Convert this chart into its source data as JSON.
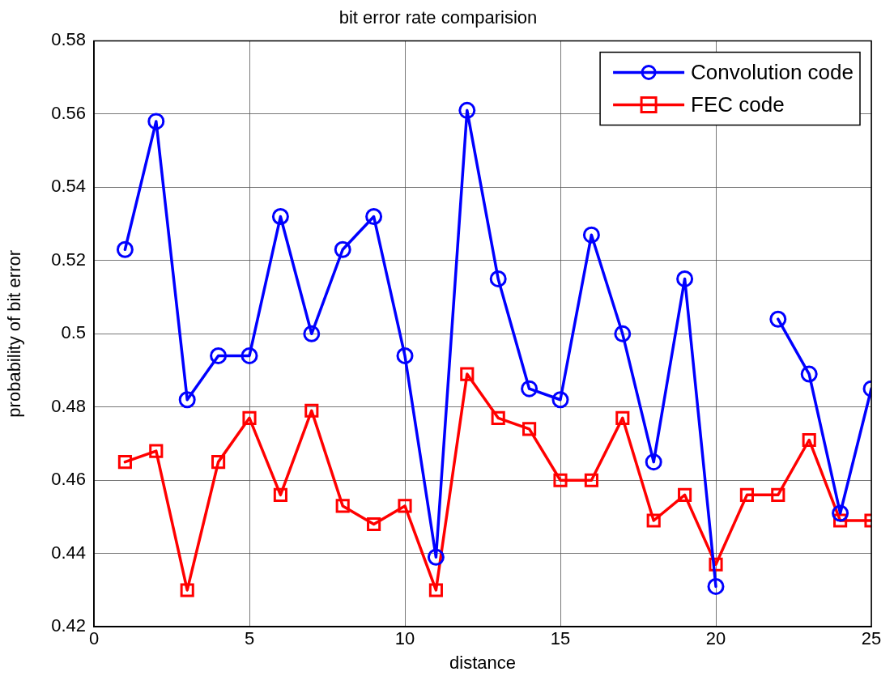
{
  "chart_data": {
    "type": "line",
    "title": "bit error rate comparision",
    "xlabel": "distance",
    "ylabel": "probability of bit error",
    "x": [
      1,
      2,
      3,
      4,
      5,
      6,
      7,
      8,
      9,
      10,
      11,
      12,
      13,
      14,
      15,
      16,
      17,
      18,
      19,
      20,
      21,
      22,
      23,
      24,
      25
    ],
    "series": [
      {
        "name": "Convolution code",
        "color": "#0000ff",
        "marker": "circle",
        "values": [
          0.523,
          0.558,
          0.482,
          0.494,
          0.494,
          0.532,
          0.5,
          0.523,
          0.532,
          0.494,
          0.439,
          0.561,
          0.515,
          0.485,
          0.482,
          0.527,
          0.5,
          0.465,
          0.515,
          0.431,
          null,
          0.504,
          0.489,
          0.451,
          0.485
        ]
      },
      {
        "name": "FEC code",
        "color": "#ff0000",
        "marker": "square",
        "values": [
          0.465,
          0.468,
          0.43,
          0.465,
          0.477,
          0.456,
          0.479,
          0.453,
          0.448,
          0.453,
          0.43,
          0.489,
          0.477,
          0.474,
          0.46,
          0.46,
          0.477,
          0.449,
          0.456,
          0.437,
          0.456,
          0.456,
          0.471,
          0.449,
          0.449
        ]
      }
    ],
    "xlim": [
      0,
      25
    ],
    "xticks": [
      0,
      5,
      10,
      15,
      20,
      25
    ],
    "ylim": [
      0.42,
      0.58
    ],
    "yticks": [
      0.42,
      0.44,
      0.46,
      0.48,
      0.5,
      0.52,
      0.54,
      0.56,
      0.58
    ],
    "grid": true,
    "legend": "top right",
    "line_style": "solid"
  }
}
